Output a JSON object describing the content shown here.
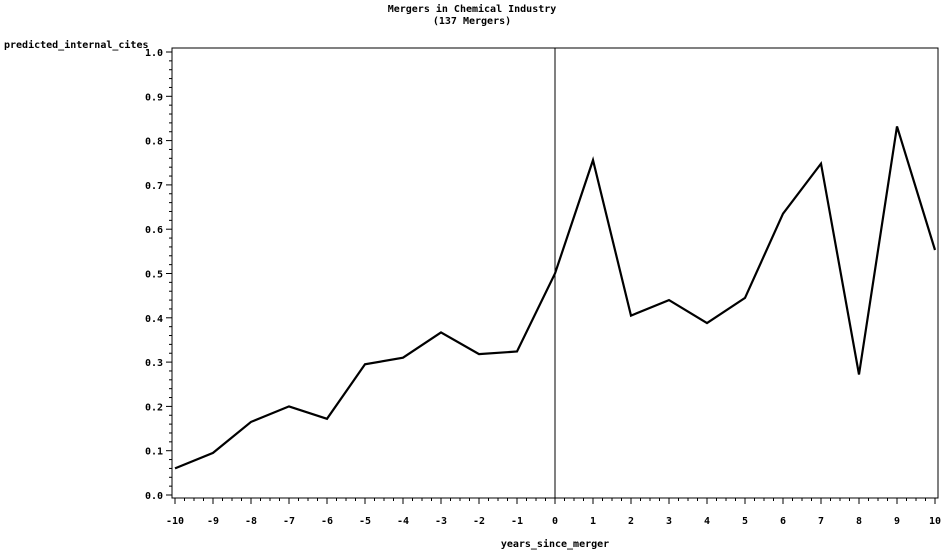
{
  "chart_data": {
    "type": "line",
    "title": "Mergers in Chemical Industry",
    "subtitle": "(137 Mergers)",
    "xlabel": "years_since_merger",
    "ylabel": "predicted_internal_cites",
    "xlim": [
      -10,
      10
    ],
    "ylim": [
      0.0,
      1.0
    ],
    "x_ticks": [
      "-10",
      "-9",
      "-8",
      "-7",
      "-6",
      "-5",
      "-4",
      "-3",
      "-2",
      "-1",
      "0",
      "1",
      "2",
      "3",
      "4",
      "5",
      "6",
      "7",
      "8",
      "9",
      "10"
    ],
    "y_ticks": [
      "0.0",
      "0.1",
      "0.2",
      "0.3",
      "0.4",
      "0.5",
      "0.6",
      "0.7",
      "0.8",
      "0.9",
      "1.0"
    ],
    "reference_line_x": 0,
    "grid": false,
    "x": [
      -10,
      -9,
      -8,
      -7,
      -6,
      -5,
      -4,
      -3,
      -2,
      -1,
      0,
      1,
      2,
      3,
      4,
      5,
      6,
      7,
      8,
      9,
      10
    ],
    "y": [
      0.06,
      0.095,
      0.165,
      0.2,
      0.172,
      0.295,
      0.31,
      0.367,
      0.318,
      0.324,
      0.5,
      0.756,
      0.405,
      0.44,
      0.388,
      0.445,
      0.635,
      0.748,
      0.272,
      0.832,
      0.553
    ]
  }
}
